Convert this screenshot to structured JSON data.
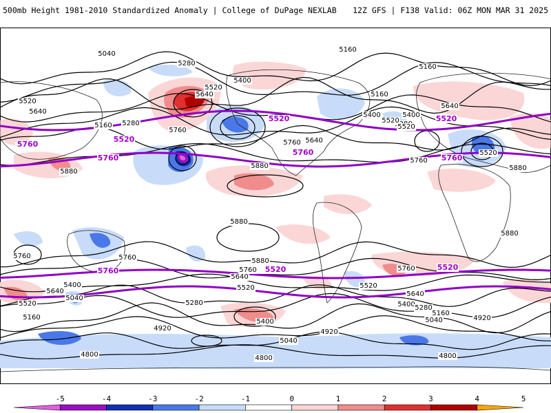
{
  "header": {
    "title_left": "500mb Height 1981-2010 Standardized Anomaly | College of DuPage NEXLAB",
    "title_right": "12Z GFS | F138 Valid: 06Z MON MAR 31 2025"
  },
  "colors": {
    "neg5": "#e060e0",
    "neg4": "#9a10c0",
    "neg3": "#1030b0",
    "neg2": "#4a78e8",
    "neg1": "#c8dcfa",
    "zero": "#ffffff",
    "pos1": "#fbd6d6",
    "pos2": "#f08c8c",
    "pos3": "#e03030",
    "pos4": "#b00000",
    "pos5": "#ffa500",
    "contour": "#000000",
    "highlight": "#9000c8",
    "land": "#222222"
  },
  "colorbar": {
    "ticks": [
      "-5",
      "-4",
      "-3",
      "-2",
      "-1",
      "0",
      "1",
      "2",
      "3",
      "4",
      "5"
    ]
  },
  "contour_labels": {
    "north": [
      "5040",
      "5160",
      "5280",
      "5160",
      "5400",
      "5520",
      "5160",
      "5520",
      "5640",
      "5280",
      "5760",
      "5400",
      "5640",
      "5760",
      "5400",
      "5520",
      "5280",
      "5160",
      "5640",
      "5520",
      "5760",
      "5880",
      "5880",
      "5520",
      "5640",
      "5880",
      "5760"
    ],
    "south": [
      "5880",
      "5880",
      "5760",
      "5760",
      "5760",
      "5640",
      "5640",
      "5520",
      "5400",
      "5040",
      "5160",
      "5520",
      "5280",
      "5400",
      "5160",
      "5040",
      "4920",
      "4920",
      "4800",
      "4800",
      "4800",
      "5880",
      "5760",
      "5520",
      "5640",
      "5400",
      "5280",
      "5160",
      "5040",
      "4920"
    ]
  },
  "highlight_labels": [
    "5520",
    "5520",
    "5520",
    "5760",
    "5760",
    "5760",
    "5760",
    "5760",
    "5520",
    "5520"
  ]
}
